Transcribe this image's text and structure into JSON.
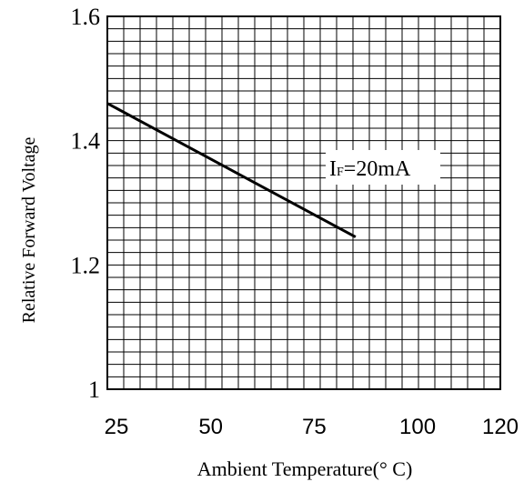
{
  "chart_data": {
    "type": "line",
    "title": "",
    "xlabel": "Ambient Temperature(° C)",
    "ylabel": "Relative Forward Voltage",
    "xlim": [
      25,
      120
    ],
    "ylim": [
      1.0,
      1.6
    ],
    "x_ticks": [
      25,
      50,
      75,
      100,
      120
    ],
    "x_tick_labels": [
      "25",
      "50",
      "75",
      "100",
      "120"
    ],
    "y_ticks": [
      1.0,
      1.2,
      1.4,
      1.6
    ],
    "y_tick_labels": [
      "1",
      "1.2",
      "1.4",
      "1.6"
    ],
    "grid": true,
    "series": [
      {
        "x": [
          25,
          85
        ],
        "y": [
          1.46,
          1.245
        ]
      }
    ],
    "annotations": [
      {
        "text_main": "I",
        "text_sub": "F",
        "text_rest": "=20mA"
      }
    ]
  }
}
